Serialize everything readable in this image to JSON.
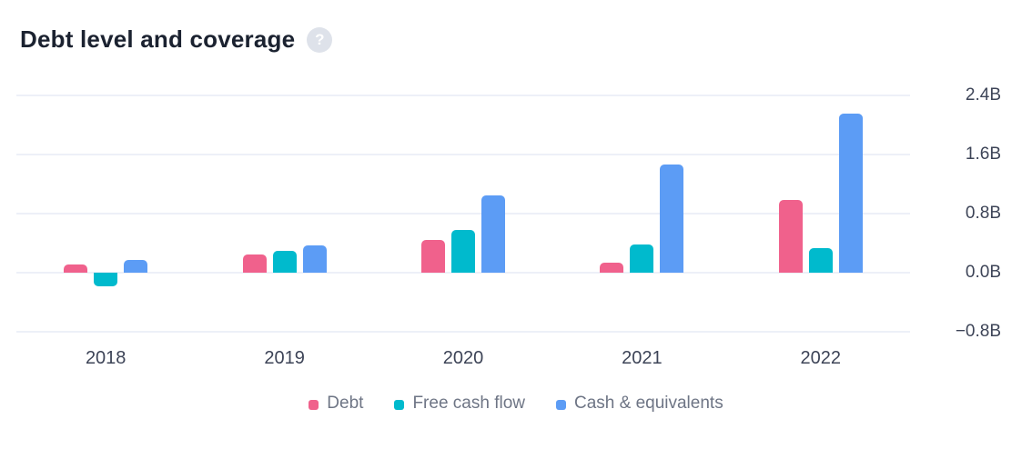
{
  "header": {
    "title": "Debt level and coverage",
    "help_glyph": "?",
    "help_icon": "question-mark-icon"
  },
  "colors": {
    "debt": "#F0618C",
    "free_cash_flow": "#00BACD",
    "cash_equivalents": "#5C9CF5",
    "gridline": "#EDF0F8",
    "title_text": "#1B2230",
    "axis_text": "#3D4457",
    "legend_text": "#6E7585",
    "help_icon_bg": "#DEE2EA",
    "background": "#FFFFFF"
  },
  "chart_data": {
    "type": "bar",
    "title": "Debt level and coverage",
    "categories": [
      "2018",
      "2019",
      "2020",
      "2021",
      "2022"
    ],
    "series": [
      {
        "name": "Debt",
        "key": "debt",
        "color": "#F0618C",
        "values": [
          0.11,
          0.25,
          0.44,
          0.13,
          0.98
        ]
      },
      {
        "name": "Free cash flow",
        "key": "free-cash-flow",
        "color": "#00BACD",
        "values": [
          -0.19,
          0.3,
          0.58,
          0.38,
          0.33
        ]
      },
      {
        "name": "Cash & equivalents",
        "key": "cash-and-equivalents",
        "color": "#5C9CF5",
        "values": [
          0.17,
          0.37,
          1.05,
          1.47,
          2.15
        ]
      }
    ],
    "unit": "B",
    "xlabel": "",
    "ylabel": "",
    "ylim": [
      -0.8,
      2.4
    ],
    "y_ticks": [
      2.4,
      1.6,
      0.8,
      0.0,
      -0.8
    ],
    "y_tick_labels": [
      "2.4B",
      "1.6B",
      "0.8B",
      "0.0B",
      "−0.8B"
    ],
    "grid": true,
    "legend_position": "bottom"
  },
  "legend": {
    "items": [
      {
        "label": "Debt",
        "key": "debt",
        "color": "#F0618C"
      },
      {
        "label": "Free cash flow",
        "key": "free-cash-flow",
        "color": "#00BACD"
      },
      {
        "label": "Cash & equivalents",
        "key": "cash-and-equivalents",
        "color": "#5C9CF5"
      }
    ]
  }
}
